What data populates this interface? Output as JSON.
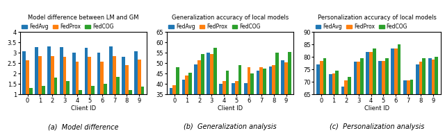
{
  "chart_data": [
    {
      "type": "bar",
      "title": "Model difference between LM and GM",
      "x_label": "Client ID",
      "caption": "(a)  Model difference",
      "categories": [
        "0",
        "1",
        "2",
        "3",
        "4",
        "5",
        "6",
        "7",
        "8",
        "9"
      ],
      "series": [
        {
          "name": "FedAvg",
          "values": [
            3.08,
            3.28,
            3.3,
            3.27,
            3.01,
            3.25,
            3.02,
            3.3,
            2.82,
            3.08
          ]
        },
        {
          "name": "FedProx",
          "values": [
            2.65,
            2.83,
            2.83,
            2.82,
            2.58,
            2.8,
            2.57,
            2.85,
            2.42,
            2.68
          ]
        },
        {
          "name": "FedCOG",
          "values": [
            1.32,
            1.42,
            1.8,
            1.65,
            1.22,
            1.4,
            1.52,
            1.85,
            1.2,
            1.38
          ]
        }
      ],
      "ylim": [
        1,
        4
      ],
      "yticks": [
        1,
        1.5,
        2,
        2.5,
        3,
        3.5,
        4
      ],
      "legend": "upper left",
      "grid": false
    },
    {
      "type": "bar",
      "title": "Generalization accuracy of local models",
      "x_label": "Client ID",
      "caption": "(b)  Generalization analysis",
      "categories": [
        "0",
        "1",
        "2",
        "3",
        "4",
        "5",
        "6",
        "7",
        "8",
        "9"
      ],
      "series": [
        {
          "name": "FedAvg",
          "values": [
            38.0,
            42.0,
            49.5,
            55.2,
            40.0,
            40.5,
            40.5,
            46.5,
            48.5,
            51.5
          ]
        },
        {
          "name": "FedProx",
          "values": [
            39.5,
            44.0,
            51.5,
            54.5,
            41.5,
            41.5,
            48.0,
            48.0,
            49.0,
            50.5
          ]
        },
        {
          "name": "FedCOG",
          "values": [
            48.0,
            45.5,
            54.5,
            57.5,
            46.5,
            49.0,
            45.0,
            47.5,
            55.0,
            55.5
          ]
        }
      ],
      "ylim": [
        35,
        65
      ],
      "yticks": [
        35,
        40,
        45,
        50,
        55,
        60,
        65
      ],
      "legend": "upper left",
      "grid": false
    },
    {
      "type": "bar",
      "title": "Personalization accuracy of local models",
      "x_label": "Client ID",
      "caption": "(c)  Personalization analysis",
      "categories": [
        "0",
        "1",
        "2",
        "3",
        "4",
        "5",
        "6",
        "7",
        "8",
        "9"
      ],
      "series": [
        {
          "name": "FedAvg",
          "values": [
            77.0,
            73.0,
            68.0,
            78.0,
            82.0,
            78.5,
            83.5,
            70.5,
            77.0,
            79.5
          ]
        },
        {
          "name": "FedProx",
          "values": [
            78.5,
            73.5,
            70.5,
            78.0,
            82.0,
            78.5,
            83.5,
            70.5,
            78.0,
            79.0
          ]
        },
        {
          "name": "FedCOG",
          "values": [
            79.5,
            74.5,
            72.0,
            79.5,
            83.5,
            79.5,
            85.0,
            71.0,
            79.5,
            80.0
          ]
        }
      ],
      "ylim": [
        65,
        90
      ],
      "yticks": [
        65,
        70,
        75,
        80,
        85,
        90
      ],
      "legend": "upper left",
      "grid": false
    }
  ]
}
